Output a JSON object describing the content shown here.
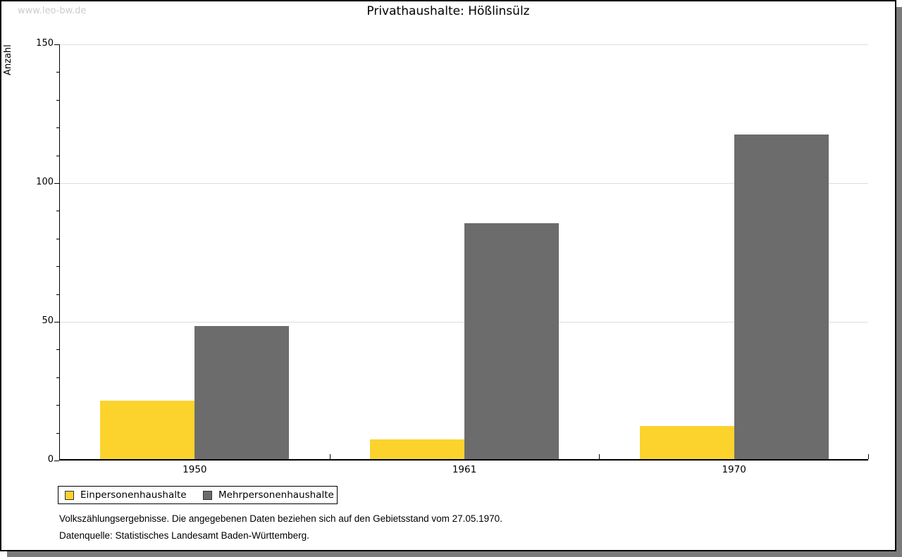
{
  "watermark": "www.leo-bw.de",
  "title": "Privathaushalte: Hößlinsülz",
  "ylabel": "Anzahl",
  "legend": {
    "items": [
      {
        "label": "Einpersonenhaushalte",
        "color": "#FCD32D"
      },
      {
        "label": "Mehrpersonenhaushalte",
        "color": "#6C6C6C"
      }
    ]
  },
  "footer": {
    "line1": "Volkszählungsergebnisse. Die angegebenen Daten beziehen sich auf den Gebietsstand vom 27.05.1970.",
    "line2": "Datenquelle: Statistisches Landesamt Baden-Württemberg."
  },
  "chart_data": {
    "type": "bar",
    "title": "Privathaushalte: Hößlinsülz",
    "xlabel": "",
    "ylabel": "Anzahl",
    "categories": [
      "1950",
      "1961",
      "1970"
    ],
    "series": [
      {
        "name": "Einpersonenhaushalte",
        "color": "#FCD32D",
        "values": [
          21,
          7,
          12
        ]
      },
      {
        "name": "Mehrpersonenhaushalte",
        "color": "#6C6C6C",
        "values": [
          48,
          85,
          117
        ]
      }
    ],
    "ylim": [
      0,
      150
    ],
    "ytick_major_step": 50,
    "ytick_minor_step": 10,
    "grid": true,
    "gridline_color": "#dddddd",
    "legend_position": "bottom-left"
  }
}
